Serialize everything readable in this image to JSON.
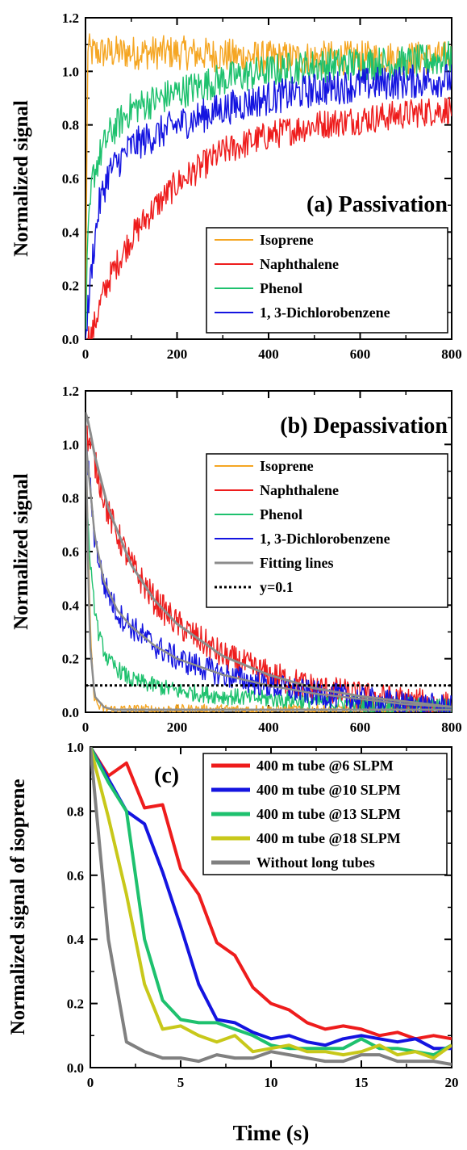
{
  "chart_data": [
    {
      "panel": "a",
      "type": "line",
      "title": "(a) Passivation",
      "xlabel": "",
      "ylabel": "Normalized signal",
      "xlim": [
        0,
        800
      ],
      "ylim": [
        0,
        1.2
      ],
      "xticks": [
        "0",
        "200",
        "400",
        "600",
        "800"
      ],
      "yticks": [
        "0.0",
        "0.2",
        "0.4",
        "0.6",
        "0.8",
        "1.0",
        "1.2"
      ],
      "legend_position": "bottom-right",
      "series": [
        {
          "name": "Isoprene",
          "color": "#f5a623",
          "noise": 0.04,
          "x": [
            0,
            5,
            10,
            50,
            100,
            200,
            300,
            400,
            500,
            600,
            700,
            800
          ],
          "y": [
            0,
            1.1,
            1.07,
            1.07,
            1.07,
            1.07,
            1.06,
            1.05,
            1.05,
            1.05,
            1.05,
            1.05
          ]
        },
        {
          "name": "Naphthalene",
          "color": "#ee1c1c",
          "noise": 0.035,
          "x": [
            0,
            15,
            30,
            50,
            100,
            150,
            200,
            300,
            400,
            500,
            600,
            700,
            800
          ],
          "y": [
            0,
            0.02,
            0.12,
            0.22,
            0.38,
            0.49,
            0.58,
            0.7,
            0.76,
            0.8,
            0.82,
            0.84,
            0.86
          ]
        },
        {
          "name": "Phenol",
          "color": "#1ec16e",
          "noise": 0.04,
          "x": [
            0,
            5,
            15,
            30,
            50,
            100,
            200,
            300,
            400,
            500,
            600,
            700,
            800
          ],
          "y": [
            0,
            0.35,
            0.6,
            0.68,
            0.76,
            0.86,
            0.92,
            0.97,
            1.0,
            1.02,
            1.03,
            1.03,
            1.05
          ]
        },
        {
          "name": "1, 3-Dichlorobenzene",
          "color": "#1414e0",
          "noise": 0.04,
          "x": [
            0,
            5,
            15,
            30,
            50,
            100,
            200,
            300,
            400,
            500,
            600,
            700,
            800
          ],
          "y": [
            0,
            0.1,
            0.3,
            0.5,
            0.62,
            0.72,
            0.8,
            0.86,
            0.9,
            0.93,
            0.95,
            0.96,
            0.97
          ]
        }
      ]
    },
    {
      "panel": "b",
      "type": "line",
      "title": "(b) Depassivation",
      "xlabel": "",
      "ylabel": "Normalized signal",
      "xlim": [
        0,
        800
      ],
      "ylim": [
        0,
        1.2
      ],
      "xticks": [
        "0",
        "200",
        "400",
        "600",
        "800"
      ],
      "yticks": [
        "0.0",
        "0.2",
        "0.4",
        "0.6",
        "0.8",
        "1.0",
        "1.2"
      ],
      "legend_position": "top-right",
      "series": [
        {
          "name": "Isoprene",
          "color": "#f5a623",
          "noise": 0.012,
          "x": [
            0,
            5,
            10,
            15,
            20,
            30,
            50,
            100,
            800
          ],
          "y": [
            1.1,
            0.7,
            0.35,
            0.15,
            0.05,
            0.02,
            0.01,
            0.01,
            0.01
          ]
        },
        {
          "name": "Naphthalene",
          "color": "#ee1c1c",
          "noise": 0.035,
          "x": [
            0,
            10,
            50,
            100,
            150,
            200,
            300,
            400,
            500,
            600,
            700,
            800
          ],
          "y": [
            1.05,
            1.0,
            0.74,
            0.55,
            0.42,
            0.33,
            0.21,
            0.14,
            0.09,
            0.06,
            0.04,
            0.02
          ]
        },
        {
          "name": "Phenol",
          "color": "#1ec16e",
          "noise": 0.02,
          "x": [
            0,
            5,
            15,
            30,
            50,
            100,
            200,
            300,
            400,
            500,
            600,
            800
          ],
          "y": [
            1.0,
            0.7,
            0.45,
            0.28,
            0.19,
            0.12,
            0.08,
            0.06,
            0.05,
            0.04,
            0.03,
            0.02
          ]
        },
        {
          "name": "1, 3-Dichlorobenzene",
          "color": "#1414e0",
          "noise": 0.03,
          "x": [
            0,
            10,
            20,
            40,
            70,
            100,
            150,
            200,
            300,
            400,
            500,
            600,
            700,
            800
          ],
          "y": [
            1.0,
            0.85,
            0.65,
            0.48,
            0.37,
            0.32,
            0.25,
            0.2,
            0.14,
            0.1,
            0.07,
            0.05,
            0.03,
            0.02
          ]
        },
        {
          "name": "Fitting lines",
          "color": "#8c8c8c",
          "noise": 0,
          "width": 3,
          "x": [
            0,
            5,
            10,
            20,
            50,
            100,
            150,
            200,
            300,
            400,
            500,
            600,
            700,
            800
          ],
          "y": [
            1.12,
            1.09,
            1.05,
            0.96,
            0.76,
            0.55,
            0.42,
            0.33,
            0.21,
            0.14,
            0.09,
            0.06,
            0.04,
            0.02
          ]
        },
        {
          "name": "Fitting lines",
          "legend": false,
          "color": "#8c8c8c",
          "noise": 0,
          "width": 2.5,
          "x": [
            0,
            10,
            20,
            40,
            70,
            100,
            150,
            200,
            300,
            400,
            500,
            600,
            700,
            800
          ],
          "y": [
            1.02,
            0.84,
            0.66,
            0.49,
            0.38,
            0.32,
            0.25,
            0.2,
            0.14,
            0.1,
            0.07,
            0.05,
            0.03,
            0.02
          ]
        },
        {
          "name": "Fitting lines",
          "legend": false,
          "color": "#8c8c8c",
          "noise": 0,
          "width": 2.5,
          "x": [
            0,
            5,
            10,
            20,
            40,
            60,
            100,
            800
          ],
          "y": [
            1.12,
            0.6,
            0.25,
            0.06,
            0.02,
            0.01,
            0.01,
            0.01
          ]
        },
        {
          "name": "y=0.1",
          "color": "#000000",
          "noise": 0,
          "dash": "3,3",
          "width": 3,
          "x": [
            0,
            800
          ],
          "y": [
            0.1,
            0.1
          ]
        }
      ]
    },
    {
      "panel": "c",
      "type": "line",
      "title": "(c)",
      "xlabel": "Time (s)",
      "ylabel": "Normalized  signal of isoprene",
      "xlim": [
        0,
        20
      ],
      "ylim": [
        0,
        1.0
      ],
      "xticks": [
        "0",
        "5",
        "10",
        "15",
        "20"
      ],
      "yticks": [
        "0.0",
        "0.2",
        "0.4",
        "0.6",
        "0.8",
        "1.0"
      ],
      "legend_position": "top-right",
      "series": [
        {
          "name": "400 m tube @6   SLPM",
          "color": "#ee1c1c",
          "width": 4,
          "x": [
            0,
            1,
            2,
            3,
            4,
            5,
            6,
            7,
            8,
            9,
            10,
            11,
            12,
            13,
            14,
            15,
            16,
            17,
            18,
            19,
            20
          ],
          "y": [
            1.0,
            0.91,
            0.95,
            0.81,
            0.82,
            0.62,
            0.54,
            0.39,
            0.35,
            0.25,
            0.2,
            0.18,
            0.14,
            0.12,
            0.13,
            0.12,
            0.1,
            0.11,
            0.09,
            0.1,
            0.09
          ]
        },
        {
          "name": "400 m tube @10 SLPM",
          "color": "#1414e0",
          "width": 4,
          "x": [
            0,
            1,
            2,
            3,
            4,
            5,
            6,
            7,
            8,
            9,
            10,
            11,
            12,
            13,
            14,
            15,
            16,
            17,
            18,
            19,
            20
          ],
          "y": [
            1.0,
            0.9,
            0.8,
            0.76,
            0.61,
            0.44,
            0.26,
            0.15,
            0.14,
            0.11,
            0.09,
            0.1,
            0.08,
            0.07,
            0.09,
            0.1,
            0.09,
            0.08,
            0.09,
            0.06,
            0.06
          ]
        },
        {
          "name": "400 m tube @13 SLPM",
          "color": "#1ec16e",
          "width": 4,
          "x": [
            0,
            1,
            2,
            3,
            4,
            5,
            6,
            7,
            8,
            9,
            10,
            11,
            12,
            13,
            14,
            15,
            16,
            17,
            18,
            19,
            20
          ],
          "y": [
            1.0,
            0.89,
            0.8,
            0.4,
            0.21,
            0.15,
            0.14,
            0.14,
            0.12,
            0.1,
            0.07,
            0.06,
            0.06,
            0.06,
            0.06,
            0.09,
            0.06,
            0.06,
            0.05,
            0.04,
            0.07
          ]
        },
        {
          "name": "400 m tube @18 SLPM",
          "color": "#c8c81a",
          "width": 4,
          "x": [
            0,
            1,
            2,
            3,
            4,
            5,
            6,
            7,
            8,
            9,
            10,
            11,
            12,
            13,
            14,
            15,
            16,
            17,
            18,
            19,
            20
          ],
          "y": [
            1.0,
            0.78,
            0.54,
            0.26,
            0.12,
            0.13,
            0.1,
            0.08,
            0.1,
            0.05,
            0.06,
            0.07,
            0.05,
            0.05,
            0.04,
            0.05,
            0.07,
            0.04,
            0.05,
            0.03,
            0.07
          ]
        },
        {
          "name": "Without long tubes",
          "color": "#808080",
          "width": 4,
          "x": [
            0,
            1,
            2,
            3,
            4,
            5,
            6,
            7,
            8,
            9,
            10,
            11,
            12,
            13,
            14,
            15,
            16,
            17,
            18,
            19,
            20
          ],
          "y": [
            1.0,
            0.4,
            0.08,
            0.05,
            0.03,
            0.03,
            0.02,
            0.04,
            0.03,
            0.03,
            0.05,
            0.04,
            0.03,
            0.02,
            0.02,
            0.04,
            0.04,
            0.02,
            0.02,
            0.02,
            0.01
          ]
        }
      ]
    }
  ]
}
